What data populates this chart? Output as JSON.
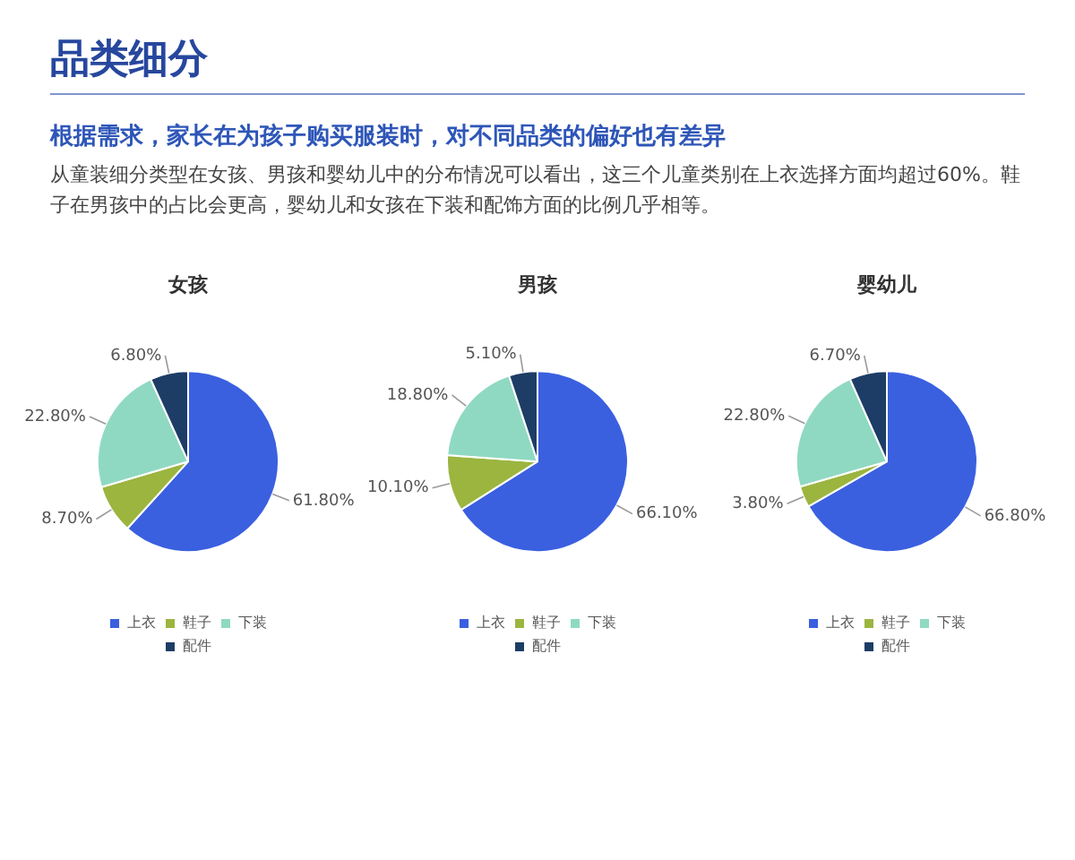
{
  "chart_data": [
    {
      "type": "other",
      "title": "品类细分",
      "subtitle": "根据需求，家长在为孩子购买服装时，对不同品类的偏好也有差异",
      "annotations": [
        "从童装细分类型在女孩、男孩和婴幼儿中的分布情况可以看出，这三个儿童类别在上衣选择方面均超过60%。鞋子在男孩中的占比会更高，婴幼儿和女孩在下装和配饰方面的比例几乎相等。"
      ]
    },
    {
      "type": "pie",
      "title": "女孩",
      "categories": [
        "上衣",
        "鞋子",
        "下装",
        "配件"
      ],
      "values": [
        61.8,
        8.7,
        22.8,
        6.8
      ],
      "value_labels": [
        "61.80%",
        "8.70%",
        "22.80%",
        "6.80%"
      ],
      "colors": [
        "#3a60e0",
        "#9bb53f",
        "#8fd9c2",
        "#1d3d66"
      ],
      "legend": "bottom"
    },
    {
      "type": "pie",
      "title": "男孩",
      "categories": [
        "上衣",
        "鞋子",
        "下装",
        "配件"
      ],
      "values": [
        66.1,
        10.1,
        18.8,
        5.1
      ],
      "value_labels": [
        "66.10%",
        "10.10%",
        "18.80%",
        "5.10%"
      ],
      "colors": [
        "#3a60e0",
        "#9bb53f",
        "#8fd9c2",
        "#1d3d66"
      ],
      "legend": "bottom"
    },
    {
      "type": "pie",
      "title": "婴幼儿",
      "categories": [
        "上衣",
        "鞋子",
        "下装",
        "配件"
      ],
      "values": [
        66.8,
        3.8,
        22.8,
        6.7
      ],
      "value_labels": [
        "66.80%",
        "3.80%",
        "22.80%",
        "6.70%"
      ],
      "colors": [
        "#3a60e0",
        "#9bb53f",
        "#8fd9c2",
        "#1d3d66"
      ],
      "legend": "bottom"
    }
  ]
}
